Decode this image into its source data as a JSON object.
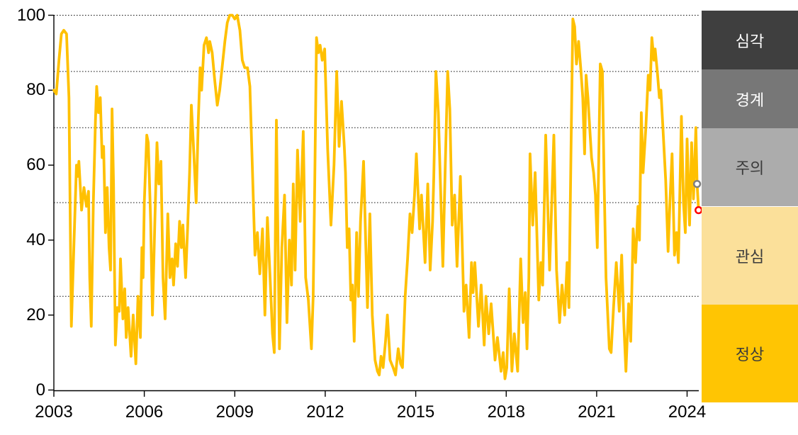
{
  "chart_data": {
    "type": "line",
    "title": "",
    "x_axis": {
      "ticks": [
        2003,
        2006,
        2009,
        2012,
        2015,
        2018,
        2021,
        2024
      ],
      "min": 2003,
      "max": 2024.6
    },
    "y_axis": {
      "ticks": [
        0,
        20,
        40,
        60,
        80,
        100
      ],
      "min": 0,
      "max": 100
    },
    "gridlines_y": [
      25,
      50,
      70,
      85,
      100
    ],
    "grid_style": "dotted",
    "legend_position": "right",
    "series": [
      {
        "name": "stress-index",
        "color": "#FFC000",
        "points": [
          [
            2003.0,
            80
          ],
          [
            2003.08,
            79
          ],
          [
            2003.17,
            88
          ],
          [
            2003.25,
            95
          ],
          [
            2003.33,
            96
          ],
          [
            2003.42,
            95
          ],
          [
            2003.5,
            78
          ],
          [
            2003.58,
            17
          ],
          [
            2003.67,
            40
          ],
          [
            2003.75,
            60
          ],
          [
            2003.79,
            57
          ],
          [
            2003.83,
            61
          ],
          [
            2003.92,
            48
          ],
          [
            2004.0,
            54
          ],
          [
            2004.08,
            49
          ],
          [
            2004.15,
            53
          ],
          [
            2004.19,
            30
          ],
          [
            2004.24,
            17
          ],
          [
            2004.31,
            50
          ],
          [
            2004.38,
            72
          ],
          [
            2004.42,
            81
          ],
          [
            2004.48,
            74
          ],
          [
            2004.54,
            78
          ],
          [
            2004.6,
            62
          ],
          [
            2004.65,
            65
          ],
          [
            2004.71,
            42
          ],
          [
            2004.77,
            54
          ],
          [
            2004.83,
            38
          ],
          [
            2004.88,
            32
          ],
          [
            2004.93,
            75
          ],
          [
            2004.98,
            55
          ],
          [
            2005.04,
            12
          ],
          [
            2005.1,
            22
          ],
          [
            2005.17,
            21
          ],
          [
            2005.21,
            35
          ],
          [
            2005.29,
            19
          ],
          [
            2005.35,
            27
          ],
          [
            2005.4,
            14
          ],
          [
            2005.46,
            22
          ],
          [
            2005.56,
            9
          ],
          [
            2005.63,
            20
          ],
          [
            2005.72,
            7
          ],
          [
            2005.79,
            25
          ],
          [
            2005.87,
            14
          ],
          [
            2005.92,
            38
          ],
          [
            2005.96,
            30
          ],
          [
            2006.0,
            50
          ],
          [
            2006.08,
            68
          ],
          [
            2006.13,
            66
          ],
          [
            2006.21,
            45
          ],
          [
            2006.27,
            20
          ],
          [
            2006.35,
            45
          ],
          [
            2006.42,
            66
          ],
          [
            2006.48,
            55
          ],
          [
            2006.55,
            61
          ],
          [
            2006.62,
            30
          ],
          [
            2006.69,
            19
          ],
          [
            2006.78,
            47
          ],
          [
            2006.85,
            30
          ],
          [
            2006.92,
            35
          ],
          [
            2006.97,
            28
          ],
          [
            2007.04,
            39
          ],
          [
            2007.1,
            33
          ],
          [
            2007.17,
            45
          ],
          [
            2007.23,
            38
          ],
          [
            2007.28,
            44
          ],
          [
            2007.37,
            30
          ],
          [
            2007.44,
            44
          ],
          [
            2007.5,
            58
          ],
          [
            2007.56,
            76
          ],
          [
            2007.63,
            65
          ],
          [
            2007.72,
            50
          ],
          [
            2007.79,
            72
          ],
          [
            2007.85,
            86
          ],
          [
            2007.9,
            80
          ],
          [
            2007.98,
            92
          ],
          [
            2008.06,
            94
          ],
          [
            2008.13,
            90
          ],
          [
            2008.17,
            93
          ],
          [
            2008.25,
            90
          ],
          [
            2008.33,
            83
          ],
          [
            2008.42,
            76
          ],
          [
            2008.5,
            80
          ],
          [
            2008.58,
            86
          ],
          [
            2008.67,
            93
          ],
          [
            2008.75,
            98
          ],
          [
            2008.83,
            100
          ],
          [
            2008.92,
            100
          ],
          [
            2009.0,
            99
          ],
          [
            2009.08,
            100
          ],
          [
            2009.17,
            96
          ],
          [
            2009.25,
            88
          ],
          [
            2009.33,
            86
          ],
          [
            2009.42,
            86
          ],
          [
            2009.5,
            81
          ],
          [
            2009.58,
            60
          ],
          [
            2009.67,
            36
          ],
          [
            2009.75,
            42
          ],
          [
            2009.83,
            31
          ],
          [
            2009.92,
            43
          ],
          [
            2010.0,
            20
          ],
          [
            2010.08,
            46
          ],
          [
            2010.17,
            30
          ],
          [
            2010.25,
            15
          ],
          [
            2010.31,
            10
          ],
          [
            2010.38,
            72
          ],
          [
            2010.48,
            11
          ],
          [
            2010.56,
            38
          ],
          [
            2010.65,
            52
          ],
          [
            2010.73,
            18
          ],
          [
            2010.81,
            40
          ],
          [
            2010.88,
            28
          ],
          [
            2010.94,
            55
          ],
          [
            2011.0,
            32
          ],
          [
            2011.08,
            64
          ],
          [
            2011.17,
            45
          ],
          [
            2011.27,
            69
          ],
          [
            2011.35,
            30
          ],
          [
            2011.44,
            24
          ],
          [
            2011.54,
            11
          ],
          [
            2011.6,
            25
          ],
          [
            2011.65,
            55
          ],
          [
            2011.71,
            94
          ],
          [
            2011.77,
            90
          ],
          [
            2011.83,
            92
          ],
          [
            2011.9,
            88
          ],
          [
            2011.98,
            91
          ],
          [
            2012.08,
            64
          ],
          [
            2012.19,
            44
          ],
          [
            2012.29,
            60
          ],
          [
            2012.38,
            85
          ],
          [
            2012.46,
            65
          ],
          [
            2012.54,
            77
          ],
          [
            2012.63,
            65
          ],
          [
            2012.67,
            58
          ],
          [
            2012.73,
            38
          ],
          [
            2012.79,
            43
          ],
          [
            2012.85,
            24
          ],
          [
            2012.9,
            28
          ],
          [
            2012.96,
            13
          ],
          [
            2013.04,
            42
          ],
          [
            2013.1,
            25
          ],
          [
            2013.17,
            45
          ],
          [
            2013.27,
            61
          ],
          [
            2013.4,
            22
          ],
          [
            2013.48,
            47
          ],
          [
            2013.56,
            20
          ],
          [
            2013.65,
            8
          ],
          [
            2013.73,
            5
          ],
          [
            2013.79,
            4
          ],
          [
            2013.85,
            9
          ],
          [
            2013.92,
            6
          ],
          [
            2014.0,
            13
          ],
          [
            2014.06,
            20
          ],
          [
            2014.15,
            8
          ],
          [
            2014.25,
            6
          ],
          [
            2014.33,
            4
          ],
          [
            2014.42,
            11
          ],
          [
            2014.5,
            7
          ],
          [
            2014.56,
            6
          ],
          [
            2014.65,
            25
          ],
          [
            2014.73,
            35
          ],
          [
            2014.81,
            47
          ],
          [
            2014.88,
            42
          ],
          [
            2014.96,
            52
          ],
          [
            2015.02,
            63
          ],
          [
            2015.13,
            43
          ],
          [
            2015.19,
            52
          ],
          [
            2015.31,
            34
          ],
          [
            2015.4,
            55
          ],
          [
            2015.48,
            32
          ],
          [
            2015.56,
            45
          ],
          [
            2015.6,
            57
          ],
          [
            2015.67,
            85
          ],
          [
            2015.75,
            74
          ],
          [
            2015.9,
            33
          ],
          [
            2015.98,
            60
          ],
          [
            2016.06,
            85
          ],
          [
            2016.13,
            75
          ],
          [
            2016.21,
            44
          ],
          [
            2016.29,
            52
          ],
          [
            2016.37,
            33
          ],
          [
            2016.48,
            57
          ],
          [
            2016.6,
            21
          ],
          [
            2016.67,
            28
          ],
          [
            2016.77,
            14
          ],
          [
            2016.85,
            34
          ],
          [
            2016.9,
            26
          ],
          [
            2016.96,
            34
          ],
          [
            2017.08,
            17
          ],
          [
            2017.17,
            28
          ],
          [
            2017.27,
            12
          ],
          [
            2017.33,
            25
          ],
          [
            2017.42,
            15
          ],
          [
            2017.5,
            23
          ],
          [
            2017.63,
            8
          ],
          [
            2017.71,
            14
          ],
          [
            2017.83,
            5
          ],
          [
            2017.9,
            10
          ],
          [
            2017.96,
            3
          ],
          [
            2018.02,
            6
          ],
          [
            2018.1,
            27
          ],
          [
            2018.19,
            5
          ],
          [
            2018.27,
            15
          ],
          [
            2018.38,
            5
          ],
          [
            2018.48,
            35
          ],
          [
            2018.56,
            18
          ],
          [
            2018.63,
            26
          ],
          [
            2018.69,
            11
          ],
          [
            2018.75,
            30
          ],
          [
            2018.79,
            63
          ],
          [
            2018.88,
            44
          ],
          [
            2018.96,
            58
          ],
          [
            2019.08,
            24
          ],
          [
            2019.15,
            34
          ],
          [
            2019.21,
            28
          ],
          [
            2019.31,
            68
          ],
          [
            2019.44,
            32
          ],
          [
            2019.58,
            68
          ],
          [
            2019.67,
            32
          ],
          [
            2019.77,
            18
          ],
          [
            2019.85,
            28
          ],
          [
            2019.94,
            20
          ],
          [
            2020.02,
            34
          ],
          [
            2020.08,
            22
          ],
          [
            2020.15,
            64
          ],
          [
            2020.21,
            99
          ],
          [
            2020.27,
            97
          ],
          [
            2020.33,
            87
          ],
          [
            2020.4,
            93
          ],
          [
            2020.48,
            85
          ],
          [
            2020.54,
            78
          ],
          [
            2020.6,
            63
          ],
          [
            2020.65,
            84
          ],
          [
            2020.71,
            78
          ],
          [
            2020.77,
            70
          ],
          [
            2020.83,
            62
          ],
          [
            2020.9,
            58
          ],
          [
            2020.96,
            52
          ],
          [
            2021.02,
            38
          ],
          [
            2021.12,
            87
          ],
          [
            2021.19,
            85
          ],
          [
            2021.25,
            55
          ],
          [
            2021.31,
            30
          ],
          [
            2021.42,
            11
          ],
          [
            2021.48,
            10
          ],
          [
            2021.56,
            22
          ],
          [
            2021.65,
            34
          ],
          [
            2021.75,
            21
          ],
          [
            2021.83,
            36
          ],
          [
            2021.9,
            18
          ],
          [
            2021.97,
            5
          ],
          [
            2022.06,
            23
          ],
          [
            2022.13,
            13
          ],
          [
            2022.21,
            43
          ],
          [
            2022.29,
            34
          ],
          [
            2022.37,
            49
          ],
          [
            2022.42,
            40
          ],
          [
            2022.48,
            74
          ],
          [
            2022.54,
            58
          ],
          [
            2022.63,
            70
          ],
          [
            2022.71,
            84
          ],
          [
            2022.77,
            80
          ],
          [
            2022.83,
            94
          ],
          [
            2022.9,
            88
          ],
          [
            2022.94,
            91
          ],
          [
            2023.02,
            84
          ],
          [
            2023.08,
            78
          ],
          [
            2023.13,
            80
          ],
          [
            2023.19,
            71
          ],
          [
            2023.29,
            56
          ],
          [
            2023.37,
            37
          ],
          [
            2023.44,
            52
          ],
          [
            2023.5,
            63
          ],
          [
            2023.58,
            36
          ],
          [
            2023.65,
            42
          ],
          [
            2023.71,
            34
          ],
          [
            2023.81,
            73
          ],
          [
            2023.88,
            50
          ],
          [
            2023.94,
            42
          ],
          [
            2024.0,
            67
          ],
          [
            2024.08,
            44
          ],
          [
            2024.15,
            66
          ],
          [
            2024.21,
            51
          ],
          [
            2024.25,
            60
          ],
          [
            2024.29,
            70
          ],
          [
            2024.33,
            55
          ],
          [
            2024.38,
            48
          ]
        ]
      }
    ],
    "markers": [
      {
        "name": "previous-point",
        "x": 2024.33,
        "y": 55,
        "ring_color": "#7F7F7F",
        "fill": "#FFFFFF"
      },
      {
        "name": "latest-point",
        "x": 2024.38,
        "y": 48,
        "ring_color": "#FF0000",
        "fill": "#FFFFFF"
      }
    ],
    "zones": [
      {
        "label": "심각",
        "name": "severe",
        "from": 85,
        "to": 100,
        "color": "#3F3F3F",
        "text_color": "#FFFFFF"
      },
      {
        "label": "경계",
        "name": "warning",
        "from": 70,
        "to": 85,
        "color": "#777777",
        "text_color": "#FFFFFF"
      },
      {
        "label": "주의",
        "name": "caution",
        "from": 50,
        "to": 70,
        "color": "#ACACAC",
        "text_color": "#3B3B3B"
      },
      {
        "label": "관심",
        "name": "attention",
        "from": 25,
        "to": 50,
        "color": "#FBE09A",
        "text_color": "#3B3B3B"
      },
      {
        "label": "정상",
        "name": "normal",
        "from": 0,
        "to": 25,
        "color": "#FFC503",
        "text_color": "#3B3B3B"
      }
    ],
    "colors": {
      "line": "#FFC000",
      "axis": "#000000",
      "grid": "#1A1A1A",
      "background": "#FFFFFF"
    }
  }
}
